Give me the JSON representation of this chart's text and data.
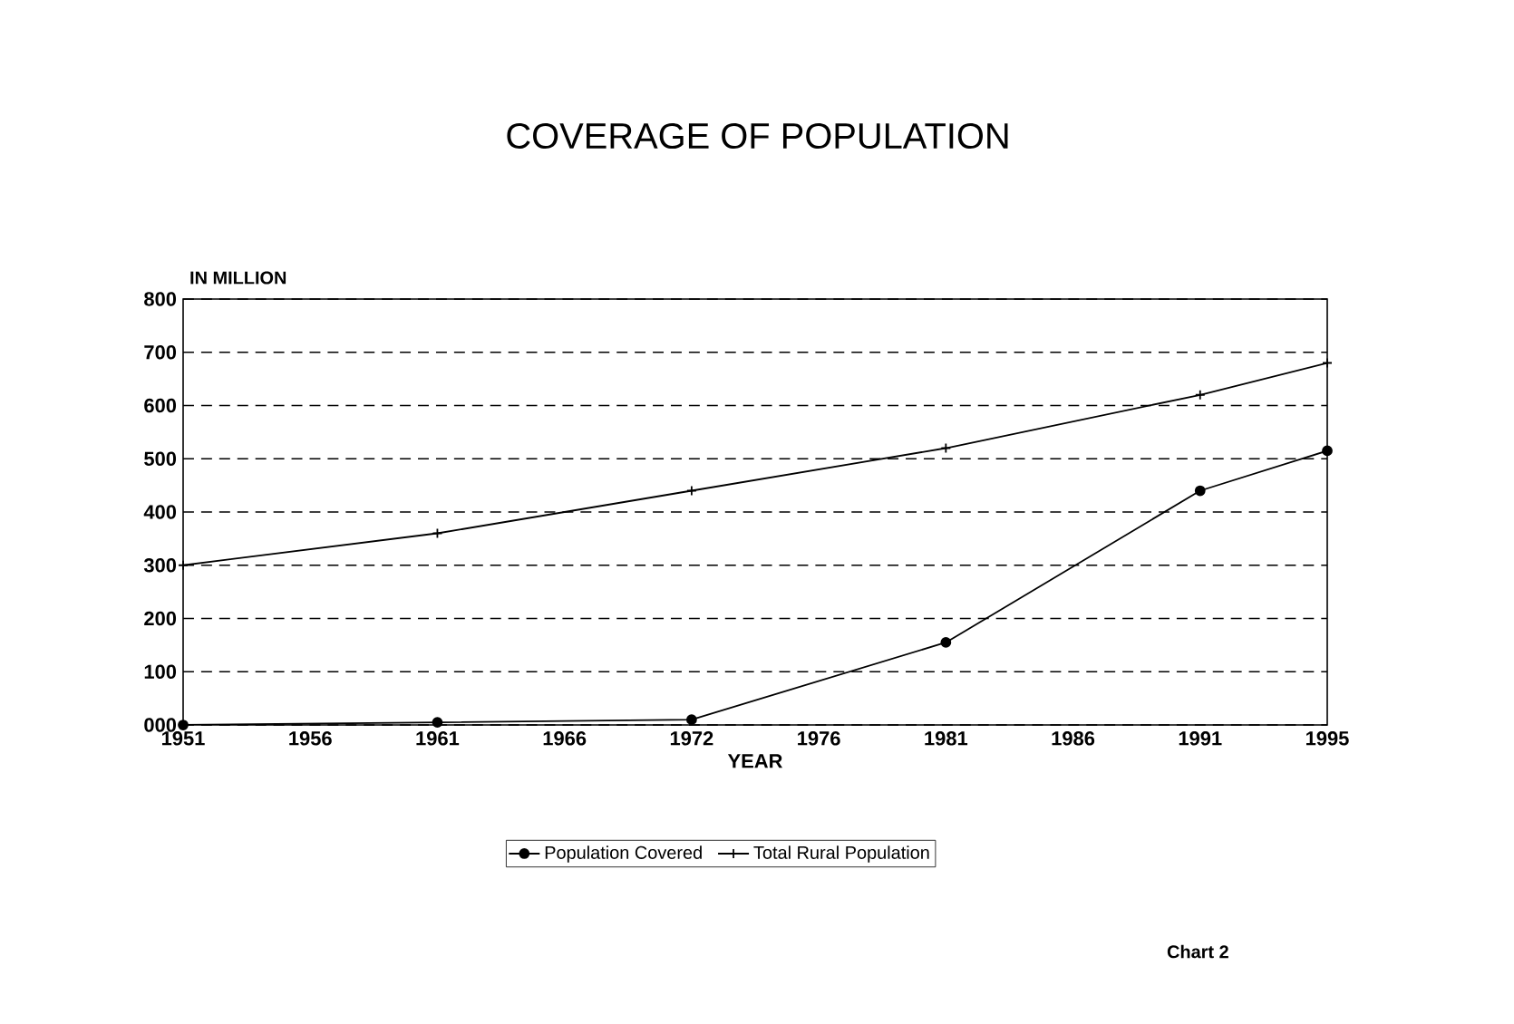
{
  "chart_data": {
    "type": "line",
    "title": "COVERAGE OF POPULATION",
    "xlabel": "YEAR",
    "ylabel": "IN MILLION",
    "categories": [
      "1951",
      "1956",
      "1961",
      "1966",
      "1972",
      "1976",
      "1981",
      "1986",
      "1991",
      "1995"
    ],
    "series": [
      {
        "name": "Population Covered",
        "color": "#000000",
        "marker": "circle",
        "values": [
          0,
          null,
          5,
          null,
          10,
          null,
          155,
          null,
          440,
          515
        ]
      },
      {
        "name": "Total Rural Population",
        "color": "#000000",
        "marker": "cross",
        "values": [
          300,
          null,
          360,
          null,
          440,
          null,
          520,
          null,
          620,
          680
        ]
      }
    ],
    "ylim": [
      0,
      800
    ],
    "yticks": [
      {
        "value": 0,
        "label": "000"
      },
      {
        "value": 100,
        "label": "100"
      },
      {
        "value": 200,
        "label": "200"
      },
      {
        "value": 300,
        "label": "300"
      },
      {
        "value": 400,
        "label": "400"
      },
      {
        "value": 500,
        "label": "500"
      },
      {
        "value": 600,
        "label": "600"
      },
      {
        "value": 700,
        "label": "700"
      },
      {
        "value": 800,
        "label": "800"
      }
    ],
    "grid": "y",
    "line_style": "solid",
    "legend": "bottom",
    "annotations": [
      "Chart 2"
    ]
  }
}
